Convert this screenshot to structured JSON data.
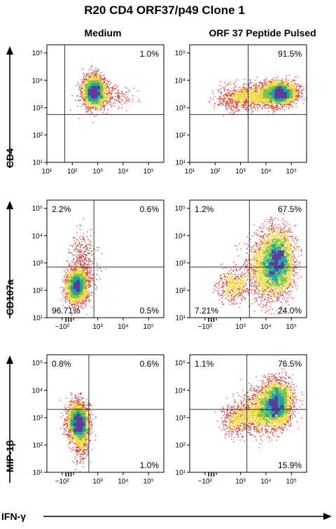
{
  "title": "R20 CD4 ORF37/p49 Clone 1",
  "columns": [
    "Medium",
    "ORF 37 Peptide Pulsed"
  ],
  "rows": [
    "CD4",
    "CD107a",
    "MIP-1β"
  ],
  "x_axis_label": "IFN-γ",
  "colors": {
    "density_low": "#e8251f",
    "density_mid1": "#f2d22a",
    "density_mid2": "#7dc243",
    "density_mid3": "#1aa6a0",
    "density_high": "#5a3f99",
    "gate_line": "#333333"
  },
  "chart_data": [
    {
      "type": "scatter",
      "panel": "CD4 / Medium",
      "x_ticks": [
        "10¹",
        "10²",
        "10³",
        "10⁴",
        "10⁵"
      ],
      "y_ticks": [
        "10¹",
        "10²",
        "10³",
        "10⁴",
        "10⁵"
      ],
      "y_axis": "CD4",
      "gate_x": 1.7,
      "gate_y": 2.75,
      "quadrants": {
        "top_left": "",
        "top_right": "1.0%",
        "bottom_left": "",
        "bottom_right": ""
      },
      "populations": [
        {
          "center_x": 2.85,
          "center_y": 3.6,
          "spread_x": 0.22,
          "spread_y": 0.28,
          "count": 2600
        },
        {
          "center_x": 3.4,
          "center_y": 3.4,
          "spread_x": 0.5,
          "spread_y": 0.2,
          "count": 250
        }
      ]
    },
    {
      "type": "scatter",
      "panel": "CD4 / ORF 37 Peptide Pulsed",
      "x_ticks": [
        "10¹",
        "10²",
        "10³",
        "10⁴",
        "10⁵"
      ],
      "y_ticks": [
        "10¹",
        "10²",
        "10³",
        "10⁴",
        "10⁵"
      ],
      "y_axis": "CD4",
      "gate_x": 3.3,
      "gate_y": 2.75,
      "quadrants": {
        "top_left": "",
        "top_right": "91.5%",
        "bottom_left": "",
        "bottom_right": ""
      },
      "populations": [
        {
          "center_x": 4.55,
          "center_y": 3.55,
          "spread_x": 0.3,
          "spread_y": 0.2,
          "count": 2800
        },
        {
          "center_x": 3.6,
          "center_y": 3.45,
          "spread_x": 0.55,
          "spread_y": 0.22,
          "count": 1200
        },
        {
          "center_x": 2.7,
          "center_y": 3.3,
          "spread_x": 0.35,
          "spread_y": 0.2,
          "count": 300
        }
      ]
    },
    {
      "type": "scatter",
      "panel": "CD107a / Medium",
      "x_ticks": [
        "−10²",
        "0",
        "10³",
        "10⁴",
        "10⁵"
      ],
      "y_ticks": [
        "10¹",
        "10²",
        "10³",
        "10⁴",
        "10⁵"
      ],
      "y_axis": "CD107a",
      "gate_x": 2.85,
      "gate_y": 2.85,
      "quadrants": {
        "top_left": "2.2%",
        "top_right": "0.6%",
        "bottom_left": "96.71%",
        "bottom_right": "0.5%"
      },
      "populations": [
        {
          "center_x": 2.15,
          "center_y": 2.15,
          "spread_x": 0.2,
          "spread_y": 0.3,
          "count": 2600
        },
        {
          "center_x": 2.4,
          "center_y": 2.9,
          "spread_x": 0.25,
          "spread_y": 0.55,
          "count": 500
        }
      ]
    },
    {
      "type": "scatter",
      "panel": "CD107a / ORF 37 Peptide Pulsed",
      "x_ticks": [
        "−10²",
        "0",
        "10³",
        "10⁴",
        "10⁵"
      ],
      "y_ticks": [
        "10¹",
        "10²",
        "10³",
        "10⁴",
        "10⁵"
      ],
      "y_axis": "CD107a",
      "gate_x": 3.35,
      "gate_y": 2.85,
      "quadrants": {
        "top_left": "1.2%",
        "top_right": "67.5%",
        "bottom_left": "7.21%",
        "bottom_right": "24.0%"
      },
      "populations": [
        {
          "center_x": 4.45,
          "center_y": 3.05,
          "spread_x": 0.3,
          "spread_y": 0.55,
          "count": 3400
        },
        {
          "center_x": 3.9,
          "center_y": 2.8,
          "spread_x": 0.35,
          "spread_y": 0.6,
          "count": 1200
        },
        {
          "center_x": 2.7,
          "center_y": 2.2,
          "spread_x": 0.3,
          "spread_y": 0.3,
          "count": 500
        }
      ]
    },
    {
      "type": "scatter",
      "panel": "MIP-1β / Medium",
      "x_ticks": [
        "−10²",
        "0",
        "10³",
        "10⁴",
        "10⁵"
      ],
      "y_ticks": [
        "10¹",
        "10²",
        "10³",
        "10⁴",
        "10⁵"
      ],
      "y_axis": "MIP-1β",
      "gate_x": 2.65,
      "gate_y": 3.3,
      "quadrants": {
        "top_left": "0.8%",
        "top_right": "0.6%",
        "bottom_left": "",
        "bottom_right": "1.0%"
      },
      "populations": [
        {
          "center_x": 2.2,
          "center_y": 2.85,
          "spread_x": 0.2,
          "spread_y": 0.35,
          "count": 2800
        },
        {
          "center_x": 2.35,
          "center_y": 2.4,
          "spread_x": 0.15,
          "spread_y": 0.45,
          "count": 600
        }
      ]
    },
    {
      "type": "scatter",
      "panel": "MIP-1β / ORF 37 Peptide Pulsed",
      "x_ticks": [
        "−10²",
        "0",
        "10³",
        "10⁴",
        "10⁵"
      ],
      "y_ticks": [
        "10¹",
        "10²",
        "10³",
        "10⁴",
        "10⁵"
      ],
      "y_axis": "MIP-1β",
      "gate_x": 3.25,
      "gate_y": 3.3,
      "quadrants": {
        "top_left": "1.1%",
        "top_right": "76.5%",
        "bottom_left": "",
        "bottom_right": "15.9%"
      },
      "populations": [
        {
          "center_x": 4.4,
          "center_y": 3.55,
          "spread_x": 0.3,
          "spread_y": 0.4,
          "count": 3200
        },
        {
          "center_x": 3.7,
          "center_y": 3.2,
          "spread_x": 0.45,
          "spread_y": 0.35,
          "count": 1300
        },
        {
          "center_x": 2.8,
          "center_y": 2.9,
          "spread_x": 0.3,
          "spread_y": 0.25,
          "count": 400
        }
      ]
    }
  ]
}
